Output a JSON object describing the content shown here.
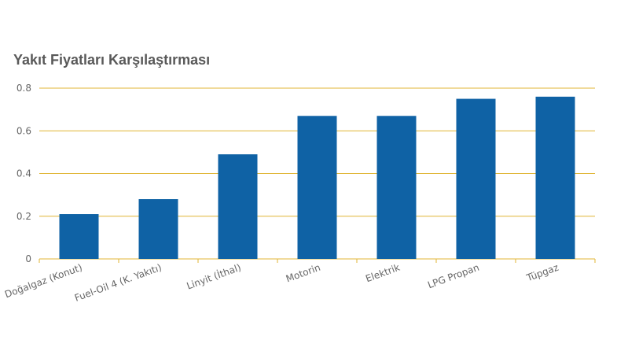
{
  "chart_data": {
    "type": "bar",
    "title": "Yakıt Fiyatları Karşılaştırması",
    "xlabel": "",
    "ylabel": "",
    "categories": [
      "Doğalgaz (Konut)",
      "Fuel-Oil 4 (K. Yakıtı)",
      "Linyit (İthal)",
      "Motorin",
      "Elektrik",
      "LPG Propan",
      "Tüpgaz"
    ],
    "values": [
      0.21,
      0.28,
      0.49,
      0.67,
      0.67,
      0.75,
      0.76
    ],
    "ylim": [
      0,
      0.8
    ],
    "yticks": [
      "0",
      "0.2",
      "0.4",
      "0.6",
      "0.8"
    ],
    "ytick_values": [
      0,
      0.2,
      0.4,
      0.6,
      0.8
    ],
    "grid": true,
    "colors": {
      "bar": "#0F62A5",
      "grid": "#E0B534",
      "text": "#666666",
      "title": "#595959"
    }
  }
}
